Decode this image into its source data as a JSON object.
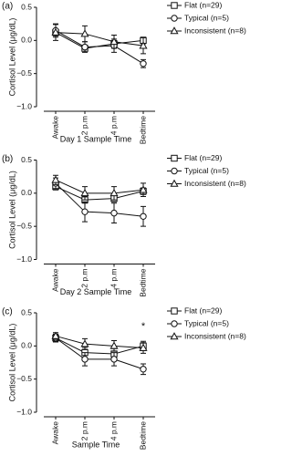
{
  "chart_data": [
    {
      "type": "line",
      "panel": "(a)",
      "x_label": "Day 1 Sample Time",
      "y_label": "Cortisol Level (μg/dL)",
      "categories": [
        "Awake",
        "2 p.m",
        "4 p.m",
        "Bedtime"
      ],
      "ylim": [
        -1.0,
        0.5
      ],
      "yticks": [
        {
          "value": -1.0,
          "label": "−1.0"
        },
        {
          "value": -0.5,
          "label": "−0.5"
        },
        {
          "value": 0.0,
          "label": "0.0"
        },
        {
          "value": 0.5,
          "label": "0.5"
        }
      ],
      "series": [
        {
          "name": "Flat (n=29)",
          "marker": "square",
          "color": "#111111",
          "values": [
            0.12,
            -0.12,
            -0.05,
            0.0
          ],
          "errors": [
            0.05,
            0.04,
            0.05,
            0.05
          ]
        },
        {
          "name": "Typical (n=5)",
          "marker": "circle",
          "color": "#111111",
          "values": [
            0.15,
            -0.1,
            -0.08,
            -0.35
          ],
          "errors": [
            0.1,
            0.08,
            0.1,
            0.06
          ]
        },
        {
          "name": "Inconsistent (n=8)",
          "marker": "triangle",
          "color": "#111111",
          "values": [
            0.12,
            0.1,
            -0.02,
            -0.08
          ],
          "errors": [
            0.12,
            0.12,
            0.1,
            0.12
          ]
        }
      ]
    },
    {
      "type": "line",
      "panel": "(b)",
      "x_label": "Day 2 Sample Time",
      "y_label": "Cortisol Level (μg/dL)",
      "categories": [
        "Awake",
        "2 p.m",
        "4 p.m",
        "Bedtime"
      ],
      "ylim": [
        -1.0,
        0.5
      ],
      "yticks": [
        {
          "value": -1.0,
          "label": "−1.0"
        },
        {
          "value": -0.5,
          "label": "−0.5"
        },
        {
          "value": 0.0,
          "label": "0.0"
        },
        {
          "value": 0.5,
          "label": "0.5"
        }
      ],
      "series": [
        {
          "name": "Flat (n=29)",
          "marker": "square",
          "color": "#111111",
          "values": [
            0.1,
            -0.1,
            -0.08,
            0.03
          ],
          "errors": [
            0.05,
            0.05,
            0.05,
            0.05
          ]
        },
        {
          "name": "Typical (n=5)",
          "marker": "circle",
          "color": "#111111",
          "values": [
            0.15,
            -0.28,
            -0.3,
            -0.35
          ],
          "errors": [
            0.08,
            0.15,
            0.15,
            0.15
          ]
        },
        {
          "name": "Inconsistent (n=8)",
          "marker": "triangle",
          "color": "#111111",
          "values": [
            0.2,
            0.0,
            0.0,
            0.05
          ],
          "errors": [
            0.07,
            0.1,
            0.1,
            0.1
          ]
        }
      ]
    },
    {
      "type": "line",
      "panel": "(c)",
      "x_label": "Sample Time",
      "y_label": "Cortisol Level (μg/dL)",
      "annotation": "*",
      "categories": [
        "Awake",
        "2 p.m",
        "4 p.m",
        "Bedtime"
      ],
      "ylim": [
        -1.0,
        0.5
      ],
      "yticks": [
        {
          "value": -1.0,
          "label": "−1.0"
        },
        {
          "value": -0.5,
          "label": "−0.5"
        },
        {
          "value": 0.0,
          "label": "0.0"
        },
        {
          "value": 0.5,
          "label": "0.5"
        }
      ],
      "series": [
        {
          "name": "Flat (n=29)",
          "marker": "square",
          "color": "#111111",
          "values": [
            0.12,
            -0.1,
            -0.12,
            0.0
          ],
          "errors": [
            0.05,
            0.08,
            0.08,
            0.07
          ]
        },
        {
          "name": "Typical (n=5)",
          "marker": "circle",
          "color": "#111111",
          "values": [
            0.12,
            -0.2,
            -0.2,
            -0.35
          ],
          "errors": [
            0.06,
            0.1,
            0.1,
            0.08
          ]
        },
        {
          "name": "Inconsistent (n=8)",
          "marker": "triangle",
          "color": "#111111",
          "values": [
            0.15,
            0.03,
            0.0,
            -0.03
          ],
          "errors": [
            0.05,
            0.08,
            0.08,
            0.08
          ]
        }
      ]
    }
  ]
}
